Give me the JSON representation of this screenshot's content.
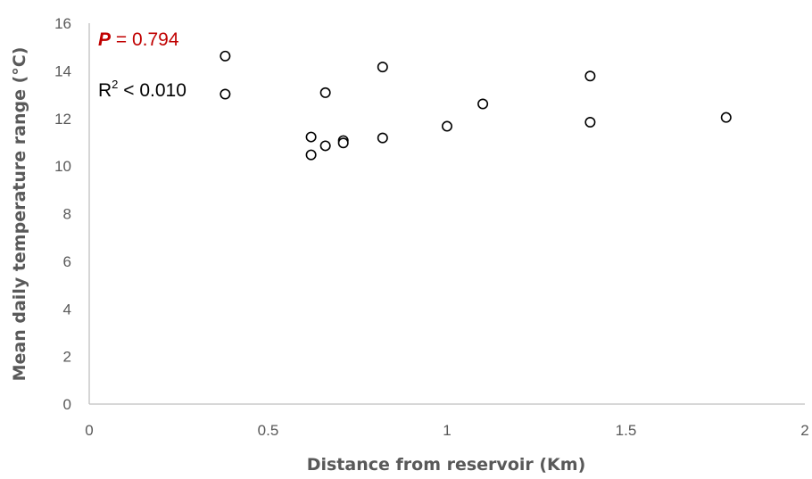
{
  "chart_data": {
    "type": "scatter",
    "title": "",
    "xlabel": "Distance from reservoir (Km)",
    "ylabel": "Mean daily temperature range (°C)",
    "xlim": [
      0,
      2
    ],
    "ylim": [
      0,
      16
    ],
    "x_ticks": [
      "0",
      "0.5",
      "1",
      "1.5",
      "2"
    ],
    "y_ticks": [
      "0",
      "2",
      "4",
      "6",
      "8",
      "10",
      "12",
      "14",
      "16"
    ],
    "grid": false,
    "legend": "none",
    "marker": "open circle",
    "marker_color": "#000000",
    "points": [
      {
        "x": 0.38,
        "y": 14.62
      },
      {
        "x": 0.38,
        "y": 13.02
      },
      {
        "x": 0.62,
        "y": 11.22
      },
      {
        "x": 0.62,
        "y": 10.47
      },
      {
        "x": 0.66,
        "y": 13.08
      },
      {
        "x": 0.66,
        "y": 10.85
      },
      {
        "x": 0.71,
        "y": 11.07
      },
      {
        "x": 0.71,
        "y": 10.97
      },
      {
        "x": 0.82,
        "y": 14.16
      },
      {
        "x": 0.82,
        "y": 11.18
      },
      {
        "x": 1.0,
        "y": 11.67
      },
      {
        "x": 1.1,
        "y": 12.61
      },
      {
        "x": 1.4,
        "y": 13.78
      },
      {
        "x": 1.4,
        "y": 11.84
      },
      {
        "x": 1.78,
        "y": 12.04
      }
    ],
    "annotations": {
      "p_symbol": "P",
      "p_value": " = 0.794",
      "r2_base": "R",
      "r2_exponent": "2",
      "r2_value": " < 0.010"
    },
    "colors": {
      "p_annotation": "#c00000",
      "r2_annotation": "#000000",
      "axis_line": "#bfbfbf",
      "text": "#595959"
    }
  }
}
